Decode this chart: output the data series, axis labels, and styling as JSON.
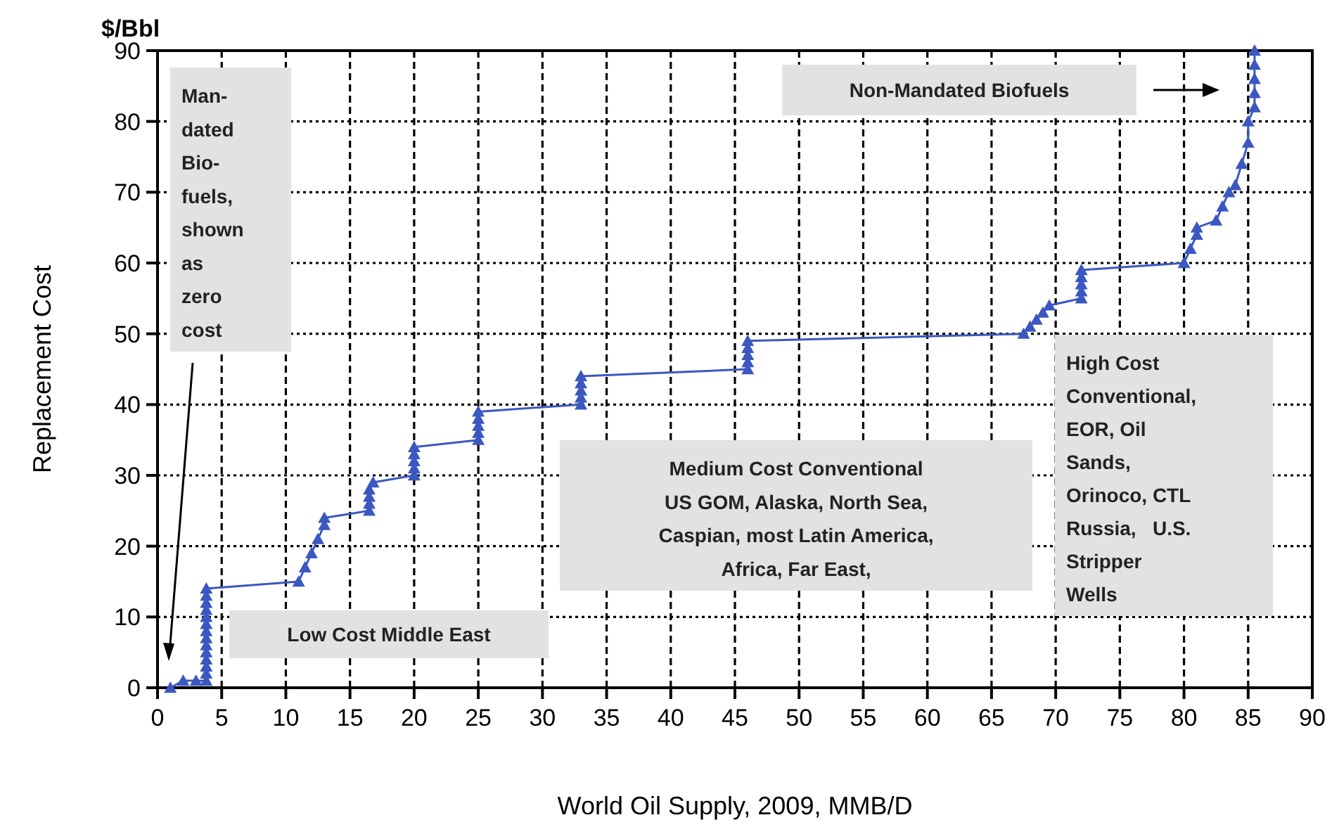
{
  "chart_data": {
    "type": "line",
    "title": "$/Bbl",
    "xlabel": "World Oil Supply, 2009, MMB/D",
    "ylabel": "Replacement Cost",
    "xlim": [
      0,
      90
    ],
    "xticks": [
      0,
      5,
      10,
      15,
      20,
      25,
      30,
      35,
      40,
      45,
      50,
      55,
      60,
      65,
      70,
      75,
      80,
      85,
      90
    ],
    "ylim": [
      0,
      90
    ],
    "yticks": [
      0,
      10,
      20,
      30,
      40,
      50,
      60,
      70,
      80,
      90
    ],
    "grid": true,
    "marker": "triangle",
    "line_style": "solid",
    "series": [
      {
        "color": "#3b57c0",
        "x": [
          1,
          2,
          3,
          3.8,
          3.8,
          3.8,
          3.8,
          3.8,
          3.8,
          3.8,
          3.8,
          3.8,
          3.8,
          3.8,
          3.8,
          3.8,
          3.8,
          11,
          11.5,
          12,
          12.5,
          13,
          13,
          16.5,
          16.5,
          16.5,
          16.5,
          16.8,
          20,
          20,
          20,
          20,
          20,
          25,
          25,
          25,
          25,
          25,
          33,
          33,
          33,
          33,
          33,
          46,
          46,
          46,
          46,
          46,
          67.5,
          68,
          68.5,
          69,
          69.5,
          72,
          72,
          72,
          72,
          72,
          80,
          80.5,
          81,
          81,
          82.5,
          83,
          83.5,
          84,
          84.5,
          85,
          85,
          85.5,
          85.5,
          85.5,
          85.5,
          85.5
        ],
        "values": [
          0,
          1,
          1,
          1,
          2,
          3,
          4,
          5,
          6,
          7,
          8,
          9,
          10,
          11,
          12,
          13,
          14,
          15,
          17,
          19,
          21,
          23,
          24,
          25,
          26,
          27,
          28,
          29,
          30,
          31,
          32,
          33,
          34,
          35,
          36,
          37,
          38,
          39,
          40,
          41,
          42,
          43,
          44,
          45,
          46,
          47,
          48,
          49,
          50,
          51,
          52,
          53,
          54,
          55,
          56,
          57,
          58,
          59,
          60,
          62,
          64,
          65,
          66,
          68,
          70,
          71,
          74,
          77,
          80,
          82,
          84,
          86,
          88,
          90
        ]
      }
    ],
    "annotations": [
      "Man-\ndated\nBio-\nfuels,\nshown\nas\nzero\ncost",
      "Low Cost Middle East",
      "Medium Cost Conventional\nUS GOM, Alaska, North Sea,\nCaspian, most Latin America,\nAfrica, Far East,",
      "High Cost\nConventional,\nEOR, Oil\nSands,\nOrinoco, CTL\nRussia,   U.S.\nStripper\nWells",
      "Non-Mandated Biofuels"
    ]
  }
}
